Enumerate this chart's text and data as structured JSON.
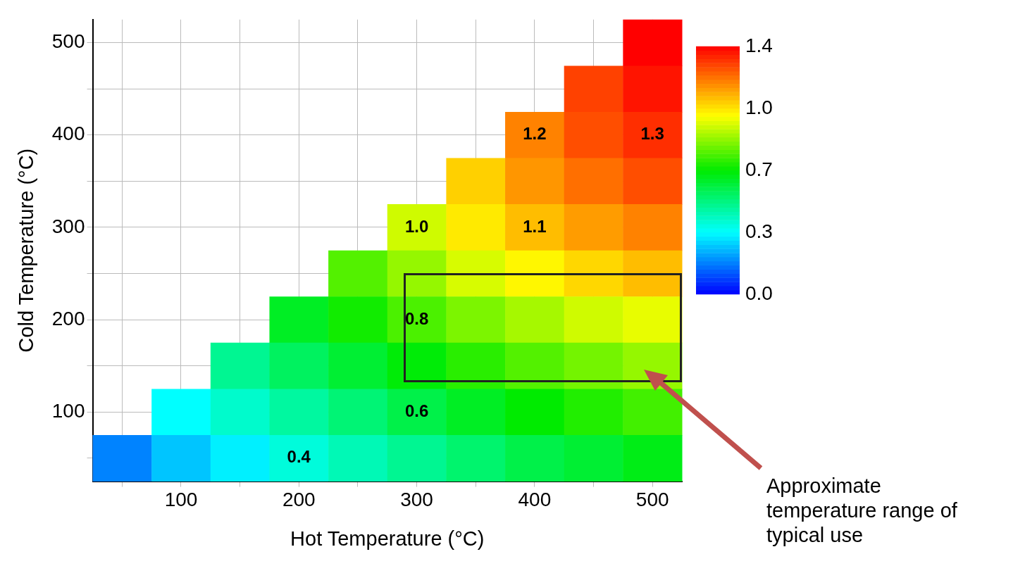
{
  "chart_data": {
    "type": "heatmap",
    "xlabel": "Hot Temperature (°C)",
    "ylabel": "Cold Temperature (°C)",
    "categories": [
      null,
      "100",
      null,
      "200",
      null,
      "300",
      null,
      "400",
      null,
      "500"
    ],
    "y_categories": [
      "500",
      null,
      "400",
      null,
      "300",
      null,
      "200",
      null,
      "100",
      null
    ],
    "cells": [
      [
        null,
        null,
        null,
        null,
        null,
        null,
        null,
        null,
        null,
        1.4
      ],
      [
        null,
        null,
        null,
        null,
        null,
        null,
        null,
        null,
        1.3,
        1.37
      ],
      [
        null,
        null,
        null,
        null,
        null,
        null,
        null,
        1.2,
        1.28,
        1.33
      ],
      [
        null,
        null,
        null,
        null,
        null,
        null,
        1.08,
        1.17,
        1.23,
        1.28
      ],
      [
        null,
        null,
        null,
        null,
        null,
        0.95,
        1.04,
        1.11,
        1.16,
        1.2
      ],
      [
        null,
        null,
        null,
        null,
        0.8,
        0.88,
        0.96,
        1.02,
        1.07,
        1.11
      ],
      [
        null,
        null,
        null,
        0.65,
        0.72,
        0.79,
        0.85,
        0.9,
        0.95,
        0.98
      ],
      [
        null,
        null,
        0.5,
        0.57,
        0.63,
        0.69,
        0.75,
        0.8,
        0.84,
        0.88
      ],
      [
        null,
        0.35,
        0.42,
        0.48,
        0.54,
        0.6,
        0.65,
        0.7,
        0.74,
        0.78
      ],
      [
        0.18,
        0.27,
        0.33,
        0.4,
        0.45,
        0.5,
        0.55,
        0.6,
        0.63,
        0.67
      ]
    ],
    "clim": [
      0,
      1.4
    ],
    "cticks": [
      {
        "value": 0,
        "label": "0.0"
      },
      {
        "value": 0.35,
        "label": "0.3"
      },
      0.7,
      {
        "value": 1.05,
        "label": "1.0"
      },
      1.4
    ],
    "grid": true,
    "cell_labels": [
      [
        null,
        null,
        null,
        null,
        null,
        null,
        null,
        null,
        null,
        null
      ],
      [
        null,
        null,
        null,
        null,
        null,
        null,
        null,
        null,
        null,
        null
      ],
      [
        null,
        null,
        null,
        null,
        null,
        null,
        null,
        "1.2",
        null,
        "1.3"
      ],
      [
        null,
        null,
        null,
        null,
        null,
        null,
        null,
        null,
        null,
        null
      ],
      [
        null,
        null,
        null,
        null,
        null,
        "1.0",
        null,
        "1.1",
        null,
        null
      ],
      [
        null,
        null,
        null,
        null,
        null,
        null,
        null,
        null,
        null,
        null
      ],
      [
        null,
        null,
        null,
        null,
        null,
        "0.8",
        null,
        null,
        null,
        null
      ],
      [
        null,
        null,
        null,
        null,
        null,
        null,
        null,
        null,
        null,
        null
      ],
      [
        null,
        null,
        null,
        null,
        null,
        "0.6",
        null,
        null,
        null,
        null
      ],
      [
        null,
        null,
        null,
        "0.4",
        null,
        null,
        null,
        null,
        null,
        null
      ]
    ],
    "annotations": [
      "Approximate temperature range of typical use"
    ]
  }
}
